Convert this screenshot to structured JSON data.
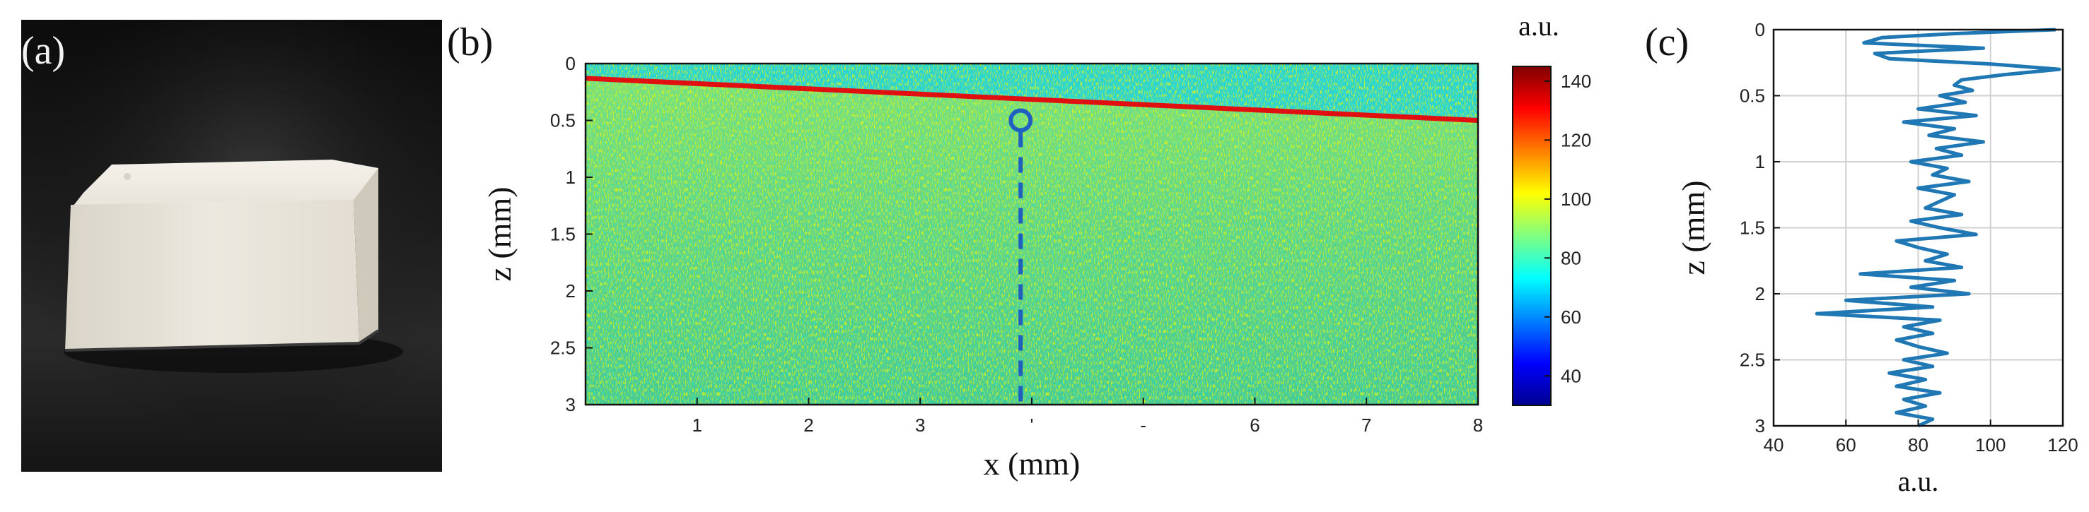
{
  "panel_labels": {
    "a": "(a)",
    "b": "(b)",
    "c": "(c)"
  },
  "colorbar": {
    "title": "a.u.",
    "range": [
      30,
      145
    ],
    "ticks": [
      "140",
      "120",
      "100",
      "80",
      "60",
      "40"
    ],
    "tick_values": [
      140,
      120,
      100,
      80,
      60,
      40
    ],
    "colormap": [
      "#00008f",
      "#0000ff",
      "#0080ff",
      "#00ffff",
      "#80ff80",
      "#ffff00",
      "#ff8000",
      "#ff0000",
      "#800000"
    ]
  },
  "chart_data": [
    {
      "type": "heatmap",
      "xlabel": "x (mm)",
      "ylabel": "z (mm)",
      "xlim": [
        0,
        8
      ],
      "ylim": [
        3,
        0
      ],
      "x_ticks": [
        "1",
        "2",
        "3",
        "'",
        "-",
        "6",
        "7",
        "8"
      ],
      "x_tick_values": [
        1,
        2,
        3,
        4,
        5,
        6,
        7,
        8
      ],
      "y_ticks": [
        "0",
        "0.5",
        "1",
        "1.5",
        "2",
        "2.5",
        "3"
      ],
      "y_tick_values": [
        0,
        0.5,
        1,
        1.5,
        2,
        2.5,
        3
      ],
      "surface_line": {
        "x": [
          0,
          8
        ],
        "z": [
          0.13,
          0.5
        ],
        "value": 140
      },
      "dashed_line_x": 3.9,
      "marker": {
        "x": 3.9,
        "z": 0.5
      },
      "background_value": 85,
      "marker_color": "#1f5fbf"
    },
    {
      "type": "line",
      "xlabel": "a.u.",
      "ylabel": "z (mm)",
      "xlim": [
        40,
        120
      ],
      "ylim": [
        3,
        0
      ],
      "grid": true,
      "x_ticks": [
        "40",
        "60",
        "80",
        "100",
        "120"
      ],
      "x_tick_values": [
        40,
        60,
        80,
        100,
        120
      ],
      "y_ticks": [
        "0",
        "0.5",
        "1",
        "1.5",
        "2",
        "2.5",
        "3"
      ],
      "y_tick_values": [
        0,
        0.5,
        1,
        1.5,
        2,
        2.5,
        3
      ],
      "series": [
        {
          "color": "#1f77b4",
          "z": [
            0.0,
            0.03,
            0.06,
            0.1,
            0.14,
            0.18,
            0.22,
            0.26,
            0.3,
            0.34,
            0.38,
            0.42,
            0.46,
            0.5,
            0.55,
            0.6,
            0.65,
            0.7,
            0.75,
            0.8,
            0.85,
            0.9,
            0.95,
            1.0,
            1.05,
            1.1,
            1.15,
            1.2,
            1.25,
            1.3,
            1.35,
            1.4,
            1.45,
            1.5,
            1.55,
            1.6,
            1.65,
            1.7,
            1.75,
            1.8,
            1.85,
            1.9,
            1.95,
            2.0,
            2.05,
            2.1,
            2.15,
            2.2,
            2.25,
            2.3,
            2.35,
            2.4,
            2.45,
            2.5,
            2.55,
            2.6,
            2.65,
            2.7,
            2.75,
            2.8,
            2.85,
            2.9,
            2.95,
            3.0
          ],
          "values": [
            118,
            90,
            70,
            65,
            98,
            68,
            72,
            100,
            119,
            104,
            92,
            90,
            95,
            86,
            93,
            80,
            96,
            76,
            90,
            83,
            98,
            85,
            92,
            78,
            88,
            84,
            94,
            80,
            90,
            86,
            82,
            92,
            78,
            86,
            96,
            74,
            80,
            88,
            82,
            92,
            64,
            90,
            78,
            94,
            60,
            84,
            52,
            86,
            76,
            84,
            74,
            80,
            88,
            76,
            84,
            72,
            82,
            74,
            86,
            76,
            82,
            74,
            84,
            80
          ]
        }
      ]
    }
  ]
}
